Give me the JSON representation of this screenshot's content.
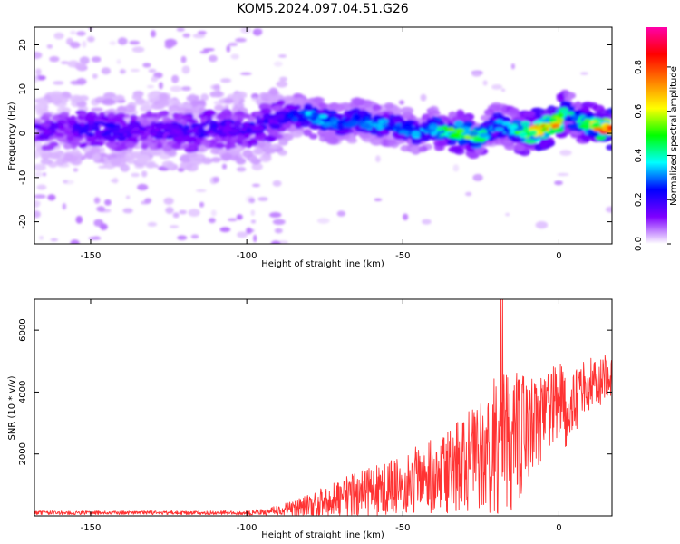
{
  "title": "KOM5.2024.097.04.51.G26",
  "chart_data": [
    {
      "type": "heatmap",
      "xlabel": "Height of straight line (km)",
      "ylabel": "Frequency (Hz)",
      "xlim": [
        -168,
        17
      ],
      "ylim": [
        -25,
        24
      ],
      "xticks": [
        -150,
        -100,
        -50,
        0
      ],
      "yticks": [
        -20,
        -10,
        0,
        10,
        20
      ],
      "colorbar": {
        "label": "Normalized spectral amplitude",
        "ticks": [
          0.0,
          0.2,
          0.4,
          0.6,
          0.8
        ],
        "tick_labels": [
          "0.0",
          "0.2",
          "0.4",
          "0.6",
          "0.8"
        ],
        "range": [
          0,
          0.98
        ],
        "colormap": [
          "#ffffff",
          "#7f00ff",
          "#0000ff",
          "#00ffff",
          "#00ff00",
          "#ffff00",
          "#ff7f00",
          "#ff0000",
          "#ff00aa"
        ]
      },
      "ridge": {
        "x": [
          -168,
          -160,
          -150,
          -140,
          -130,
          -120,
          -110,
          -100,
          -90,
          -85,
          -80,
          -75,
          -70,
          -65,
          -60,
          -55,
          -50,
          -45,
          -40,
          -35,
          -30,
          -25,
          -20,
          -15,
          -10,
          -5,
          0,
          2,
          5,
          10,
          15,
          17
        ],
        "frequency": [
          0,
          1,
          1,
          0,
          1,
          0,
          1,
          1,
          3,
          4,
          4,
          3,
          2,
          3,
          2,
          2,
          1,
          0,
          1,
          0,
          0,
          -1,
          2,
          1,
          0,
          1,
          3,
          5,
          3,
          2,
          1,
          1
        ],
        "amplitude": [
          0.15,
          0.15,
          0.2,
          0.2,
          0.15,
          0.2,
          0.2,
          0.2,
          0.2,
          0.25,
          0.35,
          0.35,
          0.3,
          0.3,
          0.35,
          0.3,
          0.3,
          0.35,
          0.35,
          0.5,
          0.55,
          0.45,
          0.3,
          0.4,
          0.6,
          0.8,
          0.7,
          0.4,
          0.4,
          0.55,
          0.85,
          0.9
        ]
      }
    },
    {
      "type": "line",
      "xlabel": "Height of straight line (km)",
      "ylabel": "SNR (10 * v/v)",
      "xlim": [
        -168,
        17
      ],
      "ylim": [
        0,
        7000
      ],
      "xticks": [
        -150,
        -100,
        -50,
        0
      ],
      "yticks": [
        2000,
        4000,
        6000
      ],
      "series": [
        {
          "color": "#ff3333",
          "x": [
            -168,
            -160,
            -150,
            -140,
            -130,
            -120,
            -110,
            -100,
            -95,
            -90,
            -85,
            -80,
            -75,
            -70,
            -65,
            -60,
            -55,
            -50,
            -45,
            -40,
            -35,
            -30,
            -25,
            -22,
            -19,
            -17,
            -14,
            -12,
            -10,
            -8,
            -5,
            -3,
            -1,
            0,
            2,
            3,
            5,
            7,
            10,
            12,
            15,
            17
          ],
          "mean": [
            100,
            100,
            100,
            100,
            100,
            100,
            100,
            100,
            120,
            180,
            250,
            350,
            450,
            600,
            700,
            800,
            900,
            1000,
            1200,
            1350,
            1500,
            1700,
            1900,
            2200,
            2500,
            2300,
            2400,
            2700,
            3000,
            3100,
            3300,
            3500,
            3700,
            3800,
            3300,
            3000,
            3600,
            4000,
            4200,
            4300,
            4400,
            4600
          ],
          "amp": [
            60,
            60,
            60,
            60,
            60,
            60,
            60,
            80,
            100,
            150,
            250,
            400,
            500,
            600,
            700,
            800,
            900,
            1000,
            1100,
            1300,
            1400,
            1600,
            1800,
            2100,
            2500,
            2300,
            2200,
            2000,
            1900,
            1700,
            1400,
            1300,
            1300,
            1500,
            1300,
            1200,
            1100,
            1000,
            900,
            800,
            800,
            700
          ]
        }
      ]
    }
  ]
}
